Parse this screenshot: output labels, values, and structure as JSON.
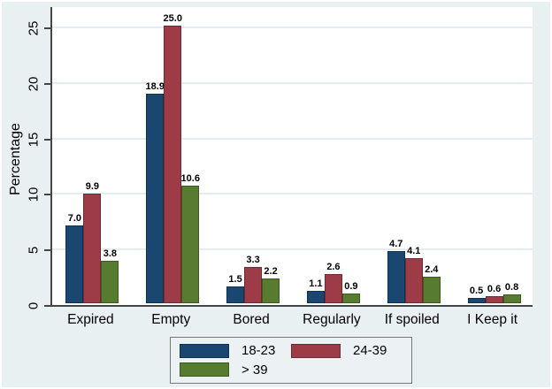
{
  "figure": {
    "background_color": "#e9f0f2",
    "plot_background_color": "#ffffff",
    "gridline_color": "#e2ecf2",
    "axis_color": "#454545",
    "legend_border_color": "#777777"
  },
  "chart_data": {
    "type": "bar",
    "title": "",
    "xlabel": "",
    "ylabel": "Percentage",
    "categories": [
      "Expired",
      "Empty",
      "Bored",
      "Regularly",
      "If spoiled",
      "I Keep it"
    ],
    "series": [
      {
        "name": "18-23",
        "color": "#1a476f",
        "border_color": "#10314f",
        "values": [
          7.0,
          18.9,
          1.5,
          1.1,
          4.7,
          0.5
        ]
      },
      {
        "name": "24-39",
        "color": "#9d3c46",
        "border_color": "#702831",
        "values": [
          9.9,
          25.0,
          3.3,
          2.6,
          4.1,
          0.6
        ]
      },
      {
        "name": "> 39",
        "color": "#577c2f",
        "border_color": "#3c591d",
        "values": [
          3.8,
          10.6,
          2.2,
          0.9,
          2.4,
          0.8
        ]
      }
    ],
    "value_labels": [
      [
        "7.0",
        "18.9",
        "1.5",
        "1.1",
        "4.7",
        "0.5"
      ],
      [
        "9.9",
        "25.0",
        "3.3",
        "2.6",
        "4.1",
        "0.6"
      ],
      [
        "3.8",
        "10.6",
        "2.2",
        "0.9",
        "2.4",
        "0.8"
      ]
    ],
    "ylim": [
      0,
      25
    ],
    "yticks": [
      "0",
      "5",
      "10",
      "15",
      "20",
      "25"
    ],
    "grid": true,
    "legend_position": "bottom"
  }
}
